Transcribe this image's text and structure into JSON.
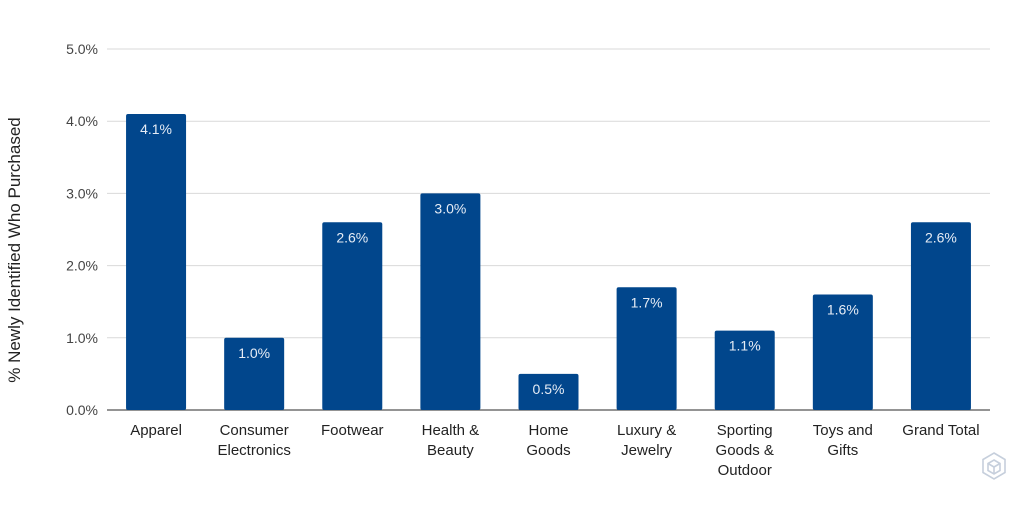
{
  "chart_data": {
    "type": "bar",
    "title": "",
    "xlabel": "",
    "ylabel": "% Newly Identified Who Purchased",
    "categories": [
      [
        "Apparel"
      ],
      [
        "Consumer",
        "Electronics"
      ],
      [
        "Footwear"
      ],
      [
        "Health &",
        "Beauty"
      ],
      [
        "Home",
        "Goods"
      ],
      [
        "Luxury &",
        "Jewelry"
      ],
      [
        "Sporting",
        "Goods &",
        "Outdoor"
      ],
      [
        "Toys and",
        "Gifts"
      ],
      [
        "Grand Total"
      ]
    ],
    "values": [
      4.1,
      1.0,
      2.6,
      3.0,
      0.5,
      1.7,
      1.1,
      1.6,
      2.6
    ],
    "data_labels": [
      "4.1%",
      "1.0%",
      "2.6%",
      "3.0%",
      "0.5%",
      "1.7%",
      "1.1%",
      "1.6%",
      "2.6%"
    ],
    "ylim": [
      0,
      5
    ],
    "yticks": [
      "0.0%",
      "1.0%",
      "2.0%",
      "3.0%",
      "4.0%",
      "5.0%"
    ],
    "grid": true,
    "legend": "none",
    "bar_color": "#01468c"
  },
  "watermark": "cube-logo-icon"
}
